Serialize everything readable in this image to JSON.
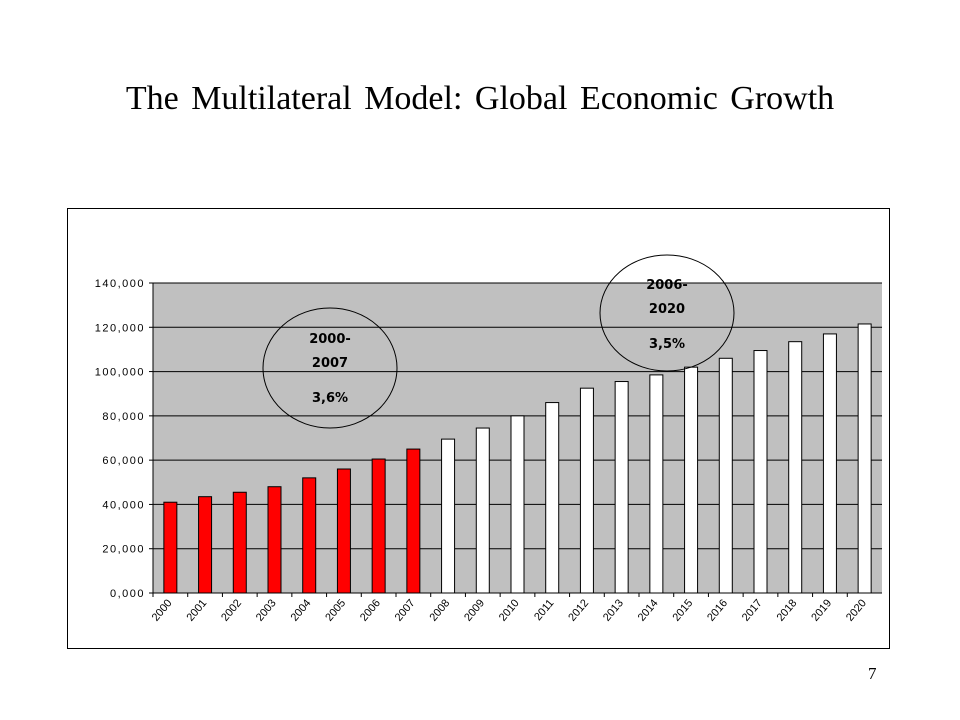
{
  "slide": {
    "title": "The Multilateral Model: Global  Economic Growth",
    "page_number": "7"
  },
  "chart_data": {
    "type": "bar",
    "title": "",
    "xlabel": "",
    "ylabel": "",
    "ylim": [
      0,
      140000
    ],
    "y_ticks": [
      "0,000",
      "20,000",
      "40,000",
      "60,000",
      "80,000",
      "100,000",
      "120,000",
      "140,000"
    ],
    "y_tick_values": [
      0,
      20000,
      40000,
      60000,
      80000,
      100000,
      120000,
      140000
    ],
    "grid": true,
    "plot_background": "#c0c0c0",
    "categories": [
      "2000",
      "2001",
      "2002",
      "2003",
      "2004",
      "2005",
      "2006",
      "2007",
      "2008",
      "2009",
      "2010",
      "2011",
      "2012",
      "2013",
      "2014",
      "2015",
      "2016",
      "2017",
      "2018",
      "2019",
      "2020"
    ],
    "values": [
      41000,
      43500,
      45500,
      48000,
      52000,
      56000,
      60500,
      65000,
      69500,
      74500,
      80000,
      86000,
      92500,
      95500,
      98500,
      102000,
      106000,
      109500,
      113500,
      117000,
      121500
    ],
    "bar_colors": [
      "#ff0000",
      "#ff0000",
      "#ff0000",
      "#ff0000",
      "#ff0000",
      "#ff0000",
      "#ff0000",
      "#ff0000",
      "#ffffff",
      "#ffffff",
      "#ffffff",
      "#ffffff",
      "#ffffff",
      "#ffffff",
      "#ffffff",
      "#ffffff",
      "#ffffff",
      "#ffffff",
      "#ffffff",
      "#ffffff",
      "#ffffff"
    ],
    "annotations": [
      {
        "period_line1": "2000-",
        "period_line2": "2007",
        "rate": "3,6%"
      },
      {
        "period_line1": "2006-",
        "period_line2": "2020",
        "rate": "3,5%"
      }
    ]
  }
}
